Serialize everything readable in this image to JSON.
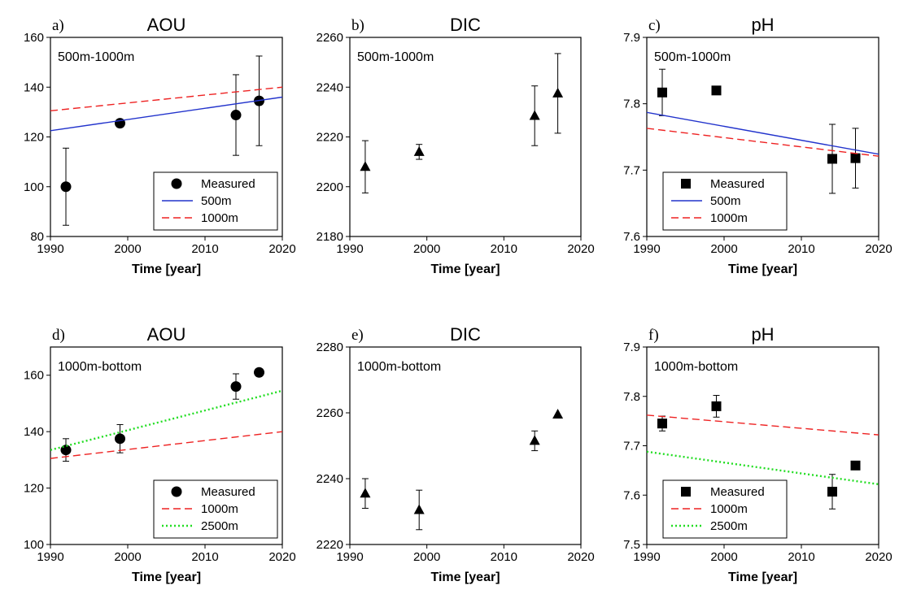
{
  "chart_data": [
    {
      "type": "scatter",
      "panel_label": "a)",
      "title": "AOU",
      "annotation": "500m-1000m",
      "xlabel": "Time [year]",
      "ylabel": "",
      "xlim": [
        1990,
        2020
      ],
      "ylim": [
        80,
        160
      ],
      "xticks": [
        1990,
        2000,
        2010,
        2020
      ],
      "yticks": [
        80,
        100,
        120,
        140,
        160
      ],
      "legend_position": "bottom-right",
      "series": [
        {
          "name": "Measured",
          "kind": "points",
          "marker": "circle",
          "x": [
            1992,
            1999,
            2014,
            2017
          ],
          "y": [
            100,
            125.5,
            128.8,
            134.5
          ],
          "err": [
            15.5,
            0,
            16.2,
            18
          ]
        },
        {
          "name": "500m",
          "kind": "line",
          "style": "solid",
          "color": "#2233cc",
          "x": [
            1990,
            2020
          ],
          "y": [
            122.5,
            136
          ]
        },
        {
          "name": "1000m",
          "kind": "line",
          "style": "dashed",
          "color": "#ee2222",
          "x": [
            1990,
            2020
          ],
          "y": [
            130.5,
            140
          ]
        }
      ]
    },
    {
      "type": "scatter",
      "panel_label": "b)",
      "title": "DIC",
      "annotation": "500m-1000m",
      "xlabel": "Time [year]",
      "ylabel": "",
      "xlim": [
        1990,
        2020
      ],
      "ylim": [
        2180,
        2260
      ],
      "xticks": [
        1990,
        2000,
        2010,
        2020
      ],
      "yticks": [
        2180,
        2200,
        2220,
        2240,
        2260
      ],
      "series": [
        {
          "name": "Measured",
          "kind": "points",
          "marker": "triangle",
          "x": [
            1992,
            1999,
            2014,
            2017
          ],
          "y": [
            2208,
            2214,
            2228.5,
            2237.5
          ],
          "err": [
            10.5,
            3,
            12,
            16
          ]
        }
      ]
    },
    {
      "type": "scatter",
      "panel_label": "c)",
      "title": "pH",
      "annotation": "500m-1000m",
      "xlabel": "Time [year]",
      "ylabel": "",
      "xlim": [
        1990,
        2020
      ],
      "ylim": [
        7.6,
        7.9
      ],
      "xticks": [
        1990,
        2000,
        2010,
        2020
      ],
      "yticks": [
        7.6,
        7.7,
        7.8,
        7.9
      ],
      "legend_position": "bottom-left",
      "series": [
        {
          "name": "Measured",
          "kind": "points",
          "marker": "square",
          "x": [
            1992,
            1999,
            2014,
            2017
          ],
          "y": [
            7.817,
            7.82,
            7.717,
            7.718
          ],
          "err": [
            0.035,
            0,
            0.052,
            0.045
          ]
        },
        {
          "name": "500m",
          "kind": "line",
          "style": "solid",
          "color": "#2233cc",
          "x": [
            1990,
            2020
          ],
          "y": [
            7.787,
            7.724
          ]
        },
        {
          "name": "1000m",
          "kind": "line",
          "style": "dashed",
          "color": "#ee2222",
          "x": [
            1990,
            2020
          ],
          "y": [
            7.763,
            7.721
          ]
        }
      ]
    },
    {
      "type": "scatter",
      "panel_label": "d)",
      "title": "AOU",
      "annotation": "1000m-bottom",
      "xlabel": "Time [year]",
      "ylabel": "",
      "xlim": [
        1990,
        2020
      ],
      "ylim": [
        100,
        170
      ],
      "xticks": [
        1990,
        2000,
        2010,
        2020
      ],
      "yticks": [
        100,
        120,
        140,
        160
      ],
      "legend_position": "bottom-right",
      "series": [
        {
          "name": "Measured",
          "kind": "points",
          "marker": "circle",
          "x": [
            1992,
            1999,
            2014,
            2017
          ],
          "y": [
            133.5,
            137.5,
            156,
            161
          ],
          "err": [
            4,
            5,
            4.5,
            0
          ]
        },
        {
          "name": "1000m",
          "kind": "line",
          "style": "dashed",
          "color": "#ee2222",
          "x": [
            1990,
            2020
          ],
          "y": [
            130.5,
            140
          ]
        },
        {
          "name": "2500m",
          "kind": "line",
          "style": "dotted",
          "color": "#22dd22",
          "x": [
            1990,
            2020
          ],
          "y": [
            133.5,
            154.5
          ]
        }
      ]
    },
    {
      "type": "scatter",
      "panel_label": "e)",
      "title": "DIC",
      "annotation": "1000m-bottom",
      "xlabel": "Time [year]",
      "ylabel": "",
      "xlim": [
        1990,
        2020
      ],
      "ylim": [
        2220,
        2280
      ],
      "xticks": [
        1990,
        2000,
        2010,
        2020
      ],
      "yticks": [
        2220,
        2240,
        2260,
        2280
      ],
      "series": [
        {
          "name": "Measured",
          "kind": "points",
          "marker": "triangle",
          "x": [
            1992,
            1999,
            2014,
            2017
          ],
          "y": [
            2235.5,
            2230.5,
            2251.5,
            2259.5
          ],
          "err": [
            4.5,
            6,
            3,
            0
          ]
        }
      ]
    },
    {
      "type": "scatter",
      "panel_label": "f)",
      "title": "pH",
      "annotation": "1000m-bottom",
      "xlabel": "Time [year]",
      "ylabel": "",
      "xlim": [
        1990,
        2020
      ],
      "ylim": [
        7.5,
        7.9
      ],
      "xticks": [
        1990,
        2000,
        2010,
        2020
      ],
      "yticks": [
        7.5,
        7.6,
        7.7,
        7.8,
        7.9
      ],
      "legend_position": "bottom-left",
      "series": [
        {
          "name": "Measured",
          "kind": "points",
          "marker": "square",
          "x": [
            1992,
            1999,
            2014,
            2017
          ],
          "y": [
            7.745,
            7.78,
            7.607,
            7.66
          ],
          "err": [
            0.015,
            0.022,
            0.035,
            0
          ]
        },
        {
          "name": "1000m",
          "kind": "line",
          "style": "dashed",
          "color": "#ee2222",
          "x": [
            1990,
            2020
          ],
          "y": [
            7.762,
            7.722
          ]
        },
        {
          "name": "2500m",
          "kind": "line",
          "style": "dotted",
          "color": "#22dd22",
          "x": [
            1990,
            2020
          ],
          "y": [
            7.688,
            7.622
          ]
        }
      ]
    }
  ]
}
